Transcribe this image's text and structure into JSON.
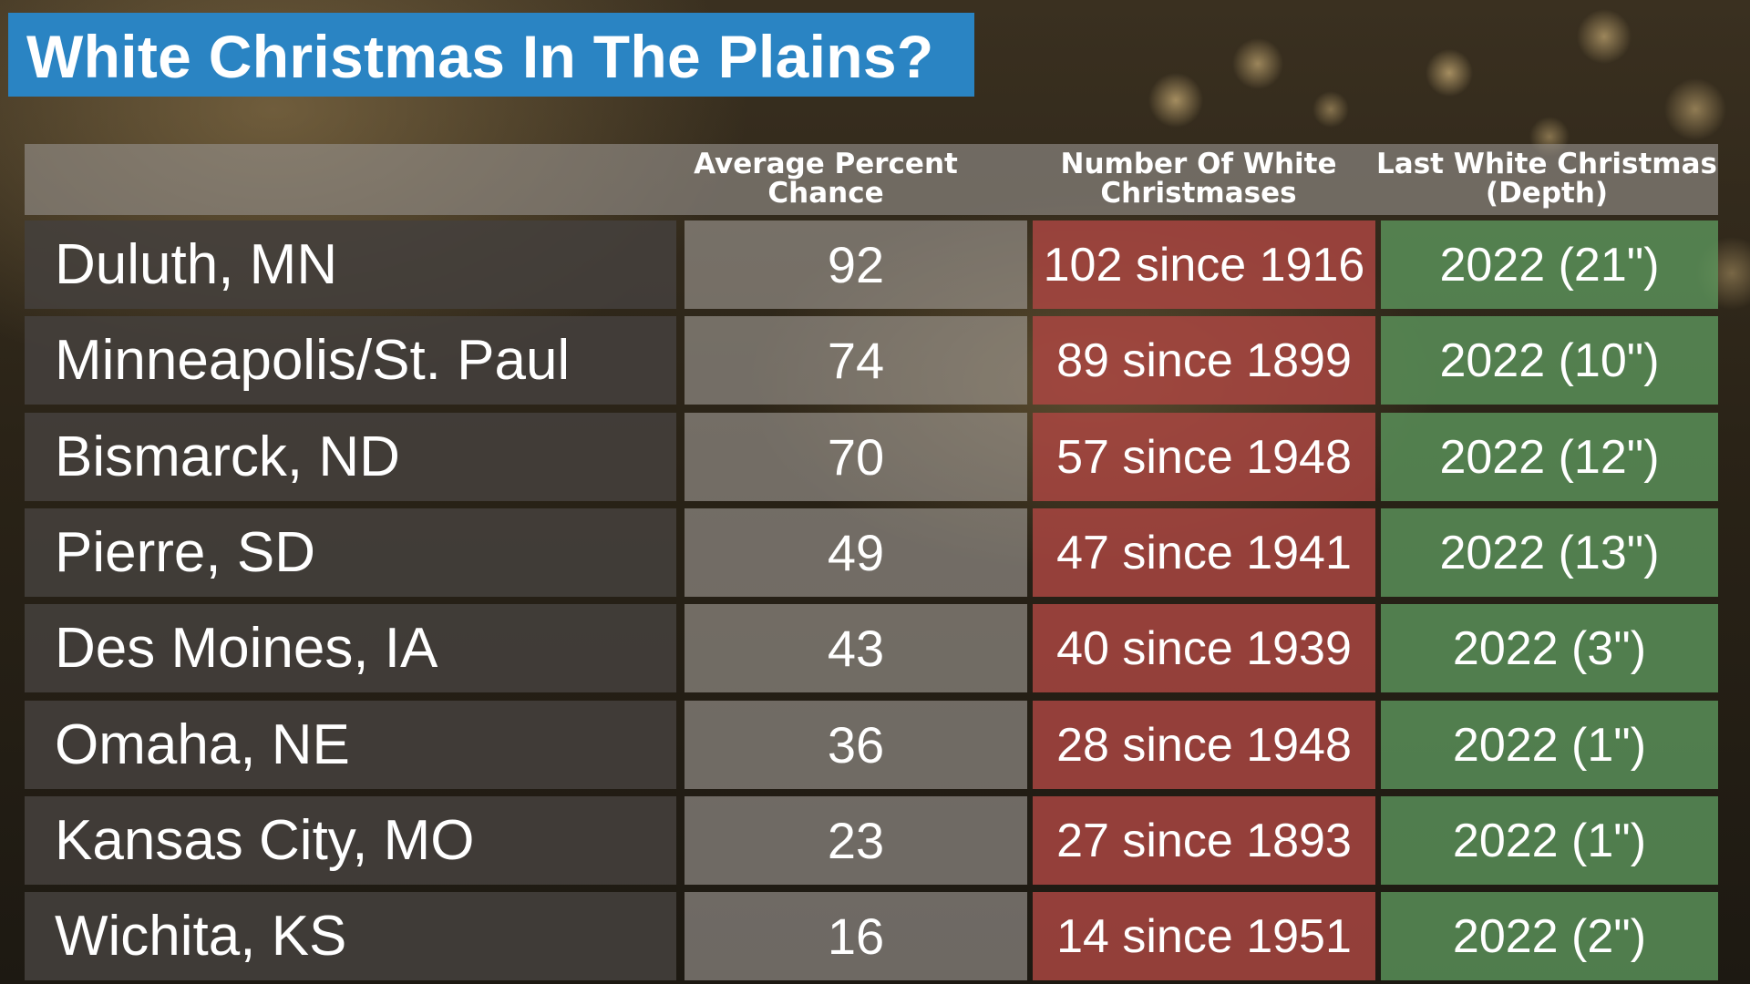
{
  "title": "White Christmas In The Plains?",
  "headers": {
    "city": "",
    "avg_pct": "Average Percent Chance",
    "count": "Number Of White Christmases",
    "last": "Last White Christmas (Depth)"
  },
  "rows": [
    {
      "city": "Duluth, MN",
      "avg_pct": "92",
      "count": "102 since 1916",
      "last": "2022 (21\")"
    },
    {
      "city": "Minneapolis/St. Paul",
      "avg_pct": "74",
      "count": "89 since 1899",
      "last": "2022 (10\")"
    },
    {
      "city": "Bismarck, ND",
      "avg_pct": "70",
      "count": "57 since 1948",
      "last": "2022 (12\")"
    },
    {
      "city": "Pierre, SD",
      "avg_pct": "49",
      "count": "47 since 1941",
      "last": "2022 (13\")"
    },
    {
      "city": "Des Moines, IA",
      "avg_pct": "43",
      "count": "40 since 1939",
      "last": "2022 (3\")"
    },
    {
      "city": "Omaha, NE",
      "avg_pct": "36",
      "count": "28 since 1948",
      "last": "2022 (1\")"
    },
    {
      "city": "Kansas City, MO",
      "avg_pct": "23",
      "count": "27 since 1893",
      "last": "2022 (1\")"
    },
    {
      "city": "Wichita, KS",
      "avg_pct": "16",
      "count": "14 since 1951",
      "last": "2022 (2\")"
    }
  ],
  "colors": {
    "title_banner": "#2a84c3",
    "city_column": "#44403c",
    "pct_column": "#a8a39e",
    "count_column": "#aa4642",
    "last_column": "#5c965c"
  }
}
